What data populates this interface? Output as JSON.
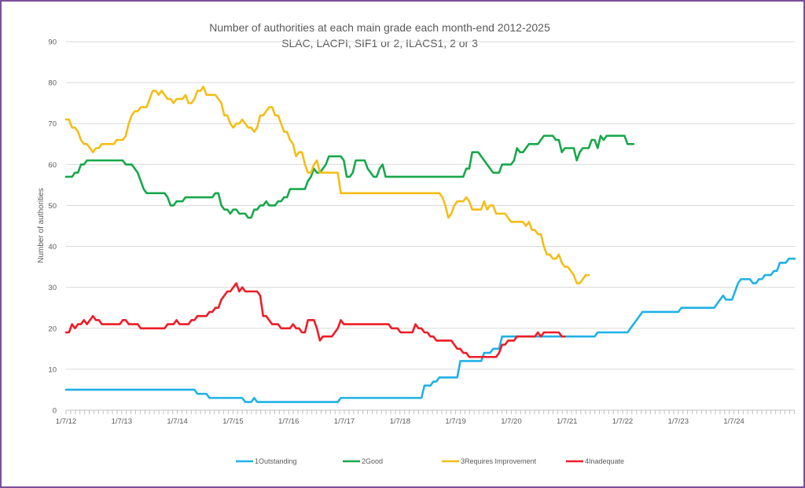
{
  "chart_data": {
    "type": "line",
    "title": "Number of authorities at each main grade each month-end 2012-2025",
    "subtitle": "SLAC, LACPI, SIF1 or 2, ILACS1, 2 or 3",
    "xlabel": "",
    "ylabel": "Number of authorities",
    "ylim": [
      0,
      90
    ],
    "yticks": [
      0,
      10,
      20,
      30,
      40,
      50,
      60,
      70,
      80,
      90
    ],
    "xtick_labels": [
      "1/7/12",
      "1/7/13",
      "1/7/14",
      "1/7/15",
      "1/7/16",
      "1/7/17",
      "1/7/18",
      "1/7/19",
      "1/7/20",
      "1/7/21",
      "1/7/22",
      "1/7/23",
      "1/7/24"
    ],
    "x_start": "2012-07",
    "grid": "horizontal",
    "legend_position": "bottom",
    "colors": {
      "outstanding": "#1fb1e6",
      "good": "#16a84a",
      "requires_improvement": "#f5bd16",
      "inadequate": "#ee1c25",
      "grid": "#d9d9d9",
      "axis": "#bfbfbf",
      "frame": "#7a4f9a"
    },
    "series": [
      {
        "name": "1Outstanding",
        "color": "#1fb1e6",
        "values": [
          5,
          5,
          5,
          5,
          5,
          5,
          5,
          5,
          5,
          5,
          5,
          5,
          5,
          5,
          5,
          5,
          5,
          5,
          5,
          5,
          5,
          5,
          5,
          5,
          5,
          5,
          5,
          5,
          5,
          5,
          5,
          5,
          5,
          5,
          5,
          5,
          5,
          5,
          5,
          5,
          5,
          5,
          5,
          5,
          4,
          4,
          4,
          4,
          3,
          3,
          3,
          3,
          3,
          3,
          3,
          3,
          3,
          3,
          3,
          3,
          2,
          2,
          2,
          3,
          2,
          2,
          2,
          2,
          2,
          2,
          2,
          2,
          2,
          2,
          2,
          2,
          2,
          2,
          2,
          2,
          2,
          2,
          2,
          2,
          2,
          2,
          2,
          2,
          2,
          2,
          2,
          2,
          3,
          3,
          3,
          3,
          3,
          3,
          3,
          3,
          3,
          3,
          3,
          3,
          3,
          3,
          3,
          3,
          3,
          3,
          3,
          3,
          3,
          3,
          3,
          3,
          3,
          3,
          3,
          3,
          6,
          6,
          6,
          7,
          7,
          8,
          8,
          8,
          8,
          8,
          8,
          8,
          12,
          12,
          12,
          12,
          12,
          12,
          12,
          12,
          14,
          14,
          14,
          15,
          15,
          15,
          18,
          18,
          18,
          18,
          18,
          18,
          18,
          18,
          18,
          18,
          18,
          18,
          18,
          18,
          18,
          18,
          18,
          18,
          18,
          18,
          18,
          18,
          18,
          18,
          18,
          18,
          18,
          18,
          18,
          18,
          18,
          18,
          19,
          19,
          19,
          19,
          19,
          19,
          19,
          19,
          19,
          19,
          19,
          20,
          21,
          22,
          23,
          24,
          24,
          24,
          24,
          24,
          24,
          24,
          24,
          24,
          24,
          24,
          24,
          24,
          25,
          25,
          25,
          25,
          25,
          25,
          25,
          25,
          25,
          25,
          25,
          25,
          26,
          27,
          28,
          27,
          27,
          27,
          29,
          31,
          32,
          32,
          32,
          32,
          31,
          31,
          32,
          32,
          33,
          33,
          33,
          34,
          34,
          36,
          36,
          36,
          37,
          37,
          37
        ]
      },
      {
        "name": "2Good",
        "color": "#16a84a",
        "values": [
          57,
          57,
          57,
          58,
          58,
          60,
          60,
          61,
          61,
          61,
          61,
          61,
          61,
          61,
          61,
          61,
          61,
          61,
          61,
          61,
          60,
          60,
          60,
          59,
          58,
          56,
          54,
          53,
          53,
          53,
          53,
          53,
          53,
          53,
          52,
          50,
          50,
          51,
          51,
          51,
          52,
          52,
          52,
          52,
          52,
          52,
          52,
          52,
          52,
          52,
          53,
          53,
          50,
          49,
          49,
          48,
          49,
          49,
          48,
          48,
          48,
          47,
          47,
          49,
          49,
          50,
          50,
          51,
          50,
          50,
          50,
          51,
          51,
          52,
          52,
          54,
          54,
          54,
          54,
          54,
          54,
          56,
          57,
          59,
          58,
          58,
          59,
          60,
          62,
          62,
          62,
          62,
          62,
          61,
          57,
          57,
          58,
          61,
          61,
          61,
          61,
          59,
          58,
          57,
          57,
          59,
          60,
          57,
          57,
          57,
          57,
          57,
          57,
          57,
          57,
          57,
          57,
          57,
          57,
          57,
          57,
          57,
          57,
          57,
          57,
          57,
          57,
          57,
          57,
          57,
          57,
          57,
          57,
          57,
          59,
          59,
          63,
          63,
          63,
          62,
          61,
          60,
          59,
          58,
          58,
          58,
          60,
          60,
          60,
          60,
          61,
          64,
          63,
          63,
          64,
          65,
          65,
          65,
          65,
          66,
          67,
          67,
          67,
          67,
          66,
          66,
          63,
          64,
          64,
          64,
          64,
          61,
          63,
          64,
          64,
          64,
          66,
          66,
          64,
          67,
          66,
          67,
          67,
          67,
          67,
          67,
          67,
          67,
          65,
          65,
          65
        ]
      },
      {
        "name": "3Requires Improvement",
        "color": "#f5bd16",
        "values": [
          71,
          71,
          69,
          69,
          68,
          66,
          65,
          65,
          64,
          63,
          64,
          64,
          65,
          65,
          65,
          65,
          65,
          66,
          66,
          66,
          67,
          70,
          72,
          73,
          73,
          74,
          74,
          74,
          76,
          78,
          78,
          77,
          78,
          77,
          76,
          76,
          75,
          76,
          76,
          76,
          77,
          75,
          75,
          76,
          78,
          78,
          79,
          77,
          77,
          77,
          77,
          76,
          75,
          72,
          72,
          70,
          69,
          70,
          70,
          71,
          70,
          69,
          69,
          68,
          69,
          72,
          72,
          73,
          74,
          74,
          72,
          72,
          70,
          68,
          68,
          66,
          65,
          62,
          63,
          63,
          60,
          58,
          58,
          60,
          61,
          58,
          58,
          58,
          58,
          58,
          58,
          58,
          53,
          53,
          53,
          53,
          53,
          53,
          53,
          53,
          53,
          53,
          53,
          53,
          53,
          53,
          53,
          53,
          53,
          53,
          53,
          53,
          53,
          53,
          53,
          53,
          53,
          53,
          53,
          53,
          53,
          53,
          53,
          53,
          53,
          53,
          52,
          50,
          47,
          48,
          50,
          51,
          51,
          51,
          52,
          51,
          49,
          49,
          49,
          49,
          51,
          49,
          50,
          50,
          48,
          48,
          48,
          48,
          47,
          46,
          46,
          46,
          46,
          46,
          45,
          46,
          44,
          44,
          43,
          43,
          40,
          38,
          38,
          37,
          37,
          38,
          36,
          35,
          35,
          34,
          33,
          31,
          31,
          32,
          33,
          33
        ]
      },
      {
        "name": "4Inadequate",
        "color": "#ee1c25",
        "values": [
          19,
          19,
          21,
          20,
          21,
          21,
          22,
          21,
          22,
          23,
          22,
          22,
          21,
          21,
          21,
          21,
          21,
          21,
          21,
          22,
          22,
          21,
          21,
          21,
          21,
          20,
          20,
          20,
          20,
          20,
          20,
          20,
          20,
          20,
          21,
          21,
          21,
          22,
          21,
          21,
          21,
          21,
          22,
          22,
          23,
          23,
          23,
          23,
          24,
          24,
          25,
          25,
          27,
          28,
          29,
          29,
          30,
          31,
          29,
          30,
          29,
          29,
          29,
          29,
          29,
          28,
          23,
          23,
          22,
          21,
          21,
          21,
          20,
          20,
          20,
          20,
          21,
          20,
          20,
          19,
          19,
          22,
          22,
          22,
          20,
          17,
          18,
          18,
          18,
          18,
          19,
          20,
          22,
          21,
          21,
          21,
          21,
          21,
          21,
          21,
          21,
          21,
          21,
          21,
          21,
          21,
          21,
          21,
          21,
          20,
          20,
          20,
          19,
          19,
          19,
          19,
          19,
          21,
          20,
          20,
          19,
          19,
          18,
          18,
          17,
          17,
          17,
          17,
          17,
          17,
          16,
          15,
          15,
          14,
          14,
          13,
          13,
          13,
          13,
          13,
          13,
          13,
          13,
          13,
          13,
          14,
          16,
          16,
          17,
          17,
          17,
          18,
          18,
          18,
          18,
          18,
          18,
          18,
          19,
          18,
          19,
          19,
          19,
          19,
          19,
          19,
          18,
          18
        ]
      }
    ]
  }
}
